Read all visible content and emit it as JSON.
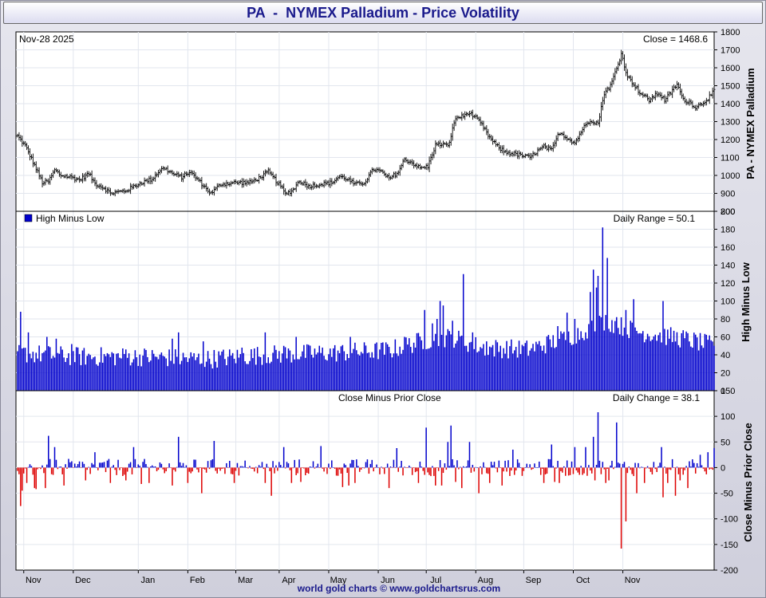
{
  "title": "PA  -  NYMEX Palladium - Price Volatility",
  "footer": "world gold charts © www.goldchartsrus.com",
  "colors": {
    "positive": "#0000cc",
    "negative": "#dd0000",
    "price": "#000000",
    "grid": "#e2e6ee"
  },
  "chart_data": [
    {
      "type": "ohlc",
      "date_label": "Nov-28  2025",
      "value_label": "Close = 1468.6",
      "ylabel": "PA  -  NYMEX Palladium",
      "ylim": [
        800,
        1800
      ],
      "ticks": [
        800,
        900,
        1000,
        1100,
        1200,
        1300,
        1400,
        1500,
        1600,
        1700,
        1800
      ],
      "anchors": [
        [
          0,
          1220
        ],
        [
          5,
          1165
        ],
        [
          10,
          1075
        ],
        [
          16,
          960
        ],
        [
          20,
          965
        ],
        [
          24,
          1030
        ],
        [
          28,
          1000
        ],
        [
          35,
          990
        ],
        [
          40,
          975
        ],
        [
          46,
          1010
        ],
        [
          50,
          955
        ],
        [
          56,
          930
        ],
        [
          60,
          900
        ],
        [
          70,
          915
        ],
        [
          80,
          960
        ],
        [
          87,
          980
        ],
        [
          92,
          1030
        ],
        [
          95,
          1040
        ],
        [
          100,
          1010
        ],
        [
          106,
          990
        ],
        [
          111,
          1020
        ],
        [
          115,
          990
        ],
        [
          121,
          935
        ],
        [
          125,
          900
        ],
        [
          131,
          950
        ],
        [
          140,
          960
        ],
        [
          150,
          960
        ],
        [
          156,
          985
        ],
        [
          162,
          1020
        ],
        [
          165,
          990
        ],
        [
          170,
          940
        ],
        [
          173,
          895
        ],
        [
          178,
          920
        ],
        [
          182,
          970
        ],
        [
          188,
          940
        ],
        [
          195,
          950
        ],
        [
          203,
          960
        ],
        [
          208,
          995
        ],
        [
          213,
          980
        ],
        [
          218,
          950
        ],
        [
          224,
          960
        ],
        [
          230,
          1035
        ],
        [
          235,
          1020
        ],
        [
          240,
          980
        ],
        [
          246,
          1020
        ],
        [
          250,
          1090
        ],
        [
          255,
          1070
        ],
        [
          260,
          1040
        ],
        [
          265,
          1050
        ],
        [
          270,
          1170
        ],
        [
          275,
          1175
        ],
        [
          278,
          1160
        ],
        [
          283,
          1320
        ],
        [
          288,
          1330
        ],
        [
          291,
          1350
        ],
        [
          295,
          1330
        ],
        [
          300,
          1280
        ],
        [
          305,
          1210
        ],
        [
          310,
          1160
        ],
        [
          315,
          1130
        ],
        [
          321,
          1120
        ],
        [
          326,
          1110
        ],
        [
          331,
          1100
        ],
        [
          335,
          1130
        ],
        [
          340,
          1160
        ],
        [
          345,
          1140
        ],
        [
          350,
          1240
        ],
        [
          355,
          1210
        ],
        [
          360,
          1180
        ],
        [
          365,
          1260
        ],
        [
          370,
          1310
        ],
        [
          375,
          1290
        ],
        [
          379,
          1460
        ],
        [
          383,
          1500
        ],
        [
          388,
          1620
        ],
        [
          390,
          1680
        ],
        [
          394,
          1550
        ],
        [
          398,
          1510
        ],
        [
          402,
          1460
        ],
        [
          408,
          1420
        ],
        [
          414,
          1460
        ],
        [
          418,
          1420
        ],
        [
          422,
          1460
        ],
        [
          426,
          1510
        ],
        [
          430,
          1420
        ],
        [
          434,
          1410
        ],
        [
          438,
          1380
        ],
        [
          442,
          1400
        ],
        [
          446,
          1430
        ],
        [
          450,
          1469
        ]
      ],
      "x_months": [
        [
          "Nov",
          4
        ],
        [
          "Dec",
          36
        ],
        [
          "Jan",
          78
        ],
        [
          "Feb",
          110
        ],
        [
          "Mar",
          141
        ],
        [
          "Apr",
          169
        ],
        [
          "May",
          201
        ],
        [
          "Jun",
          233
        ],
        [
          "Jul",
          264
        ],
        [
          "Aug",
          296
        ],
        [
          "Sep",
          327
        ],
        [
          "Oct",
          359
        ],
        [
          "Nov",
          391
        ]
      ]
    },
    {
      "type": "bar",
      "legend": "High Minus Low",
      "value_label": "Daily Range = 50.1",
      "ylabel": "High Minus Low",
      "ylim": [
        0,
        200
      ],
      "ticks": [
        0,
        20,
        40,
        60,
        80,
        100,
        120,
        140,
        160,
        180,
        200
      ],
      "anchors": [
        [
          0,
          42
        ],
        [
          40,
          38
        ],
        [
          80,
          38
        ],
        [
          120,
          35
        ],
        [
          160,
          40
        ],
        [
          200,
          42
        ],
        [
          240,
          45
        ],
        [
          260,
          55
        ],
        [
          280,
          60
        ],
        [
          300,
          48
        ],
        [
          330,
          46
        ],
        [
          360,
          62
        ],
        [
          380,
          78
        ],
        [
          400,
          66
        ],
        [
          430,
          58
        ],
        [
          450,
          50
        ]
      ],
      "spikes": [
        [
          2,
          88
        ],
        [
          7,
          65
        ],
        [
          19,
          60
        ],
        [
          25,
          58
        ],
        [
          35,
          52
        ],
        [
          70,
          46
        ],
        [
          100,
          58
        ],
        [
          104,
          65
        ],
        [
          120,
          55
        ],
        [
          145,
          48
        ],
        [
          160,
          65
        ],
        [
          172,
          50
        ],
        [
          180,
          60
        ],
        [
          215,
          60
        ],
        [
          250,
          60
        ],
        [
          263,
          90
        ],
        [
          268,
          75
        ],
        [
          271,
          80
        ],
        [
          273,
          100
        ],
        [
          275,
          95
        ],
        [
          281,
          78
        ],
        [
          288,
          130
        ],
        [
          294,
          65
        ],
        [
          303,
          55
        ],
        [
          349,
          72
        ],
        [
          355,
          87
        ],
        [
          360,
          80
        ],
        [
          367,
          65
        ],
        [
          370,
          110
        ],
        [
          372,
          135
        ],
        [
          374,
          115
        ],
        [
          375,
          128
        ],
        [
          378,
          182
        ],
        [
          381,
          148
        ],
        [
          387,
          82
        ],
        [
          393,
          90
        ],
        [
          398,
          102
        ],
        [
          417,
          100
        ],
        [
          421,
          58
        ]
      ]
    },
    {
      "type": "bar",
      "title": "Close Minus Prior Close",
      "value_label": "Daily Change = 38.1",
      "ylabel": "Close Minus Prior Close",
      "ylim": [
        -200,
        150
      ],
      "ticks": [
        -200,
        -150,
        -100,
        -50,
        0,
        50,
        100,
        150
      ],
      "spikes": [
        [
          2,
          -75
        ],
        [
          3,
          -45
        ],
        [
          6,
          -30
        ],
        [
          11,
          -40
        ],
        [
          12,
          -42
        ],
        [
          18,
          -40
        ],
        [
          20,
          62
        ],
        [
          24,
          40
        ],
        [
          30,
          -35
        ],
        [
          44,
          -25
        ],
        [
          50,
          30
        ],
        [
          60,
          -30
        ],
        [
          70,
          -25
        ],
        [
          75,
          40
        ],
        [
          80,
          -32
        ],
        [
          85,
          -30
        ],
        [
          100,
          -35
        ],
        [
          104,
          60
        ],
        [
          110,
          -30
        ],
        [
          119,
          -50
        ],
        [
          127,
          52
        ],
        [
          140,
          -30
        ],
        [
          160,
          -30
        ],
        [
          164,
          -55
        ],
        [
          172,
          40
        ],
        [
          177,
          -30
        ],
        [
          183,
          -28
        ],
        [
          196,
          42
        ],
        [
          210,
          -38
        ],
        [
          214,
          -35
        ],
        [
          218,
          -30
        ],
        [
          240,
          -40
        ],
        [
          245,
          38
        ],
        [
          259,
          -30
        ],
        [
          264,
          78
        ],
        [
          270,
          -35
        ],
        [
          274,
          -35
        ],
        [
          278,
          50
        ],
        [
          280,
          82
        ],
        [
          283,
          -28
        ],
        [
          287,
          -40
        ],
        [
          292,
          50
        ],
        [
          298,
          -50
        ],
        [
          305,
          -30
        ],
        [
          313,
          -35
        ],
        [
          320,
          35
        ],
        [
          340,
          -30
        ],
        [
          345,
          45
        ],
        [
          347,
          -28
        ],
        [
          350,
          -30
        ],
        [
          360,
          40
        ],
        [
          367,
          40
        ],
        [
          372,
          60
        ],
        [
          373,
          -25
        ],
        [
          375,
          108
        ],
        [
          380,
          -30
        ],
        [
          382,
          -25
        ],
        [
          387,
          88
        ],
        [
          390,
          -158
        ],
        [
          393,
          -105
        ],
        [
          400,
          -50
        ],
        [
          405,
          -30
        ],
        [
          416,
          40
        ],
        [
          417,
          -58
        ],
        [
          420,
          -30
        ],
        [
          425,
          -55
        ],
        [
          428,
          -25
        ],
        [
          433,
          -40
        ],
        [
          441,
          25
        ],
        [
          446,
          30
        ]
      ],
      "x_months": [
        [
          "Nov",
          4
        ],
        [
          "Dec",
          36
        ],
        [
          "Jan",
          78
        ],
        [
          "Feb",
          110
        ],
        [
          "Mar",
          141
        ],
        [
          "Apr",
          169
        ],
        [
          "May",
          201
        ],
        [
          "Jun",
          233
        ],
        [
          "Jul",
          264
        ],
        [
          "Aug",
          296
        ],
        [
          "Sep",
          327
        ],
        [
          "Oct",
          359
        ],
        [
          "Nov",
          391
        ]
      ]
    }
  ]
}
